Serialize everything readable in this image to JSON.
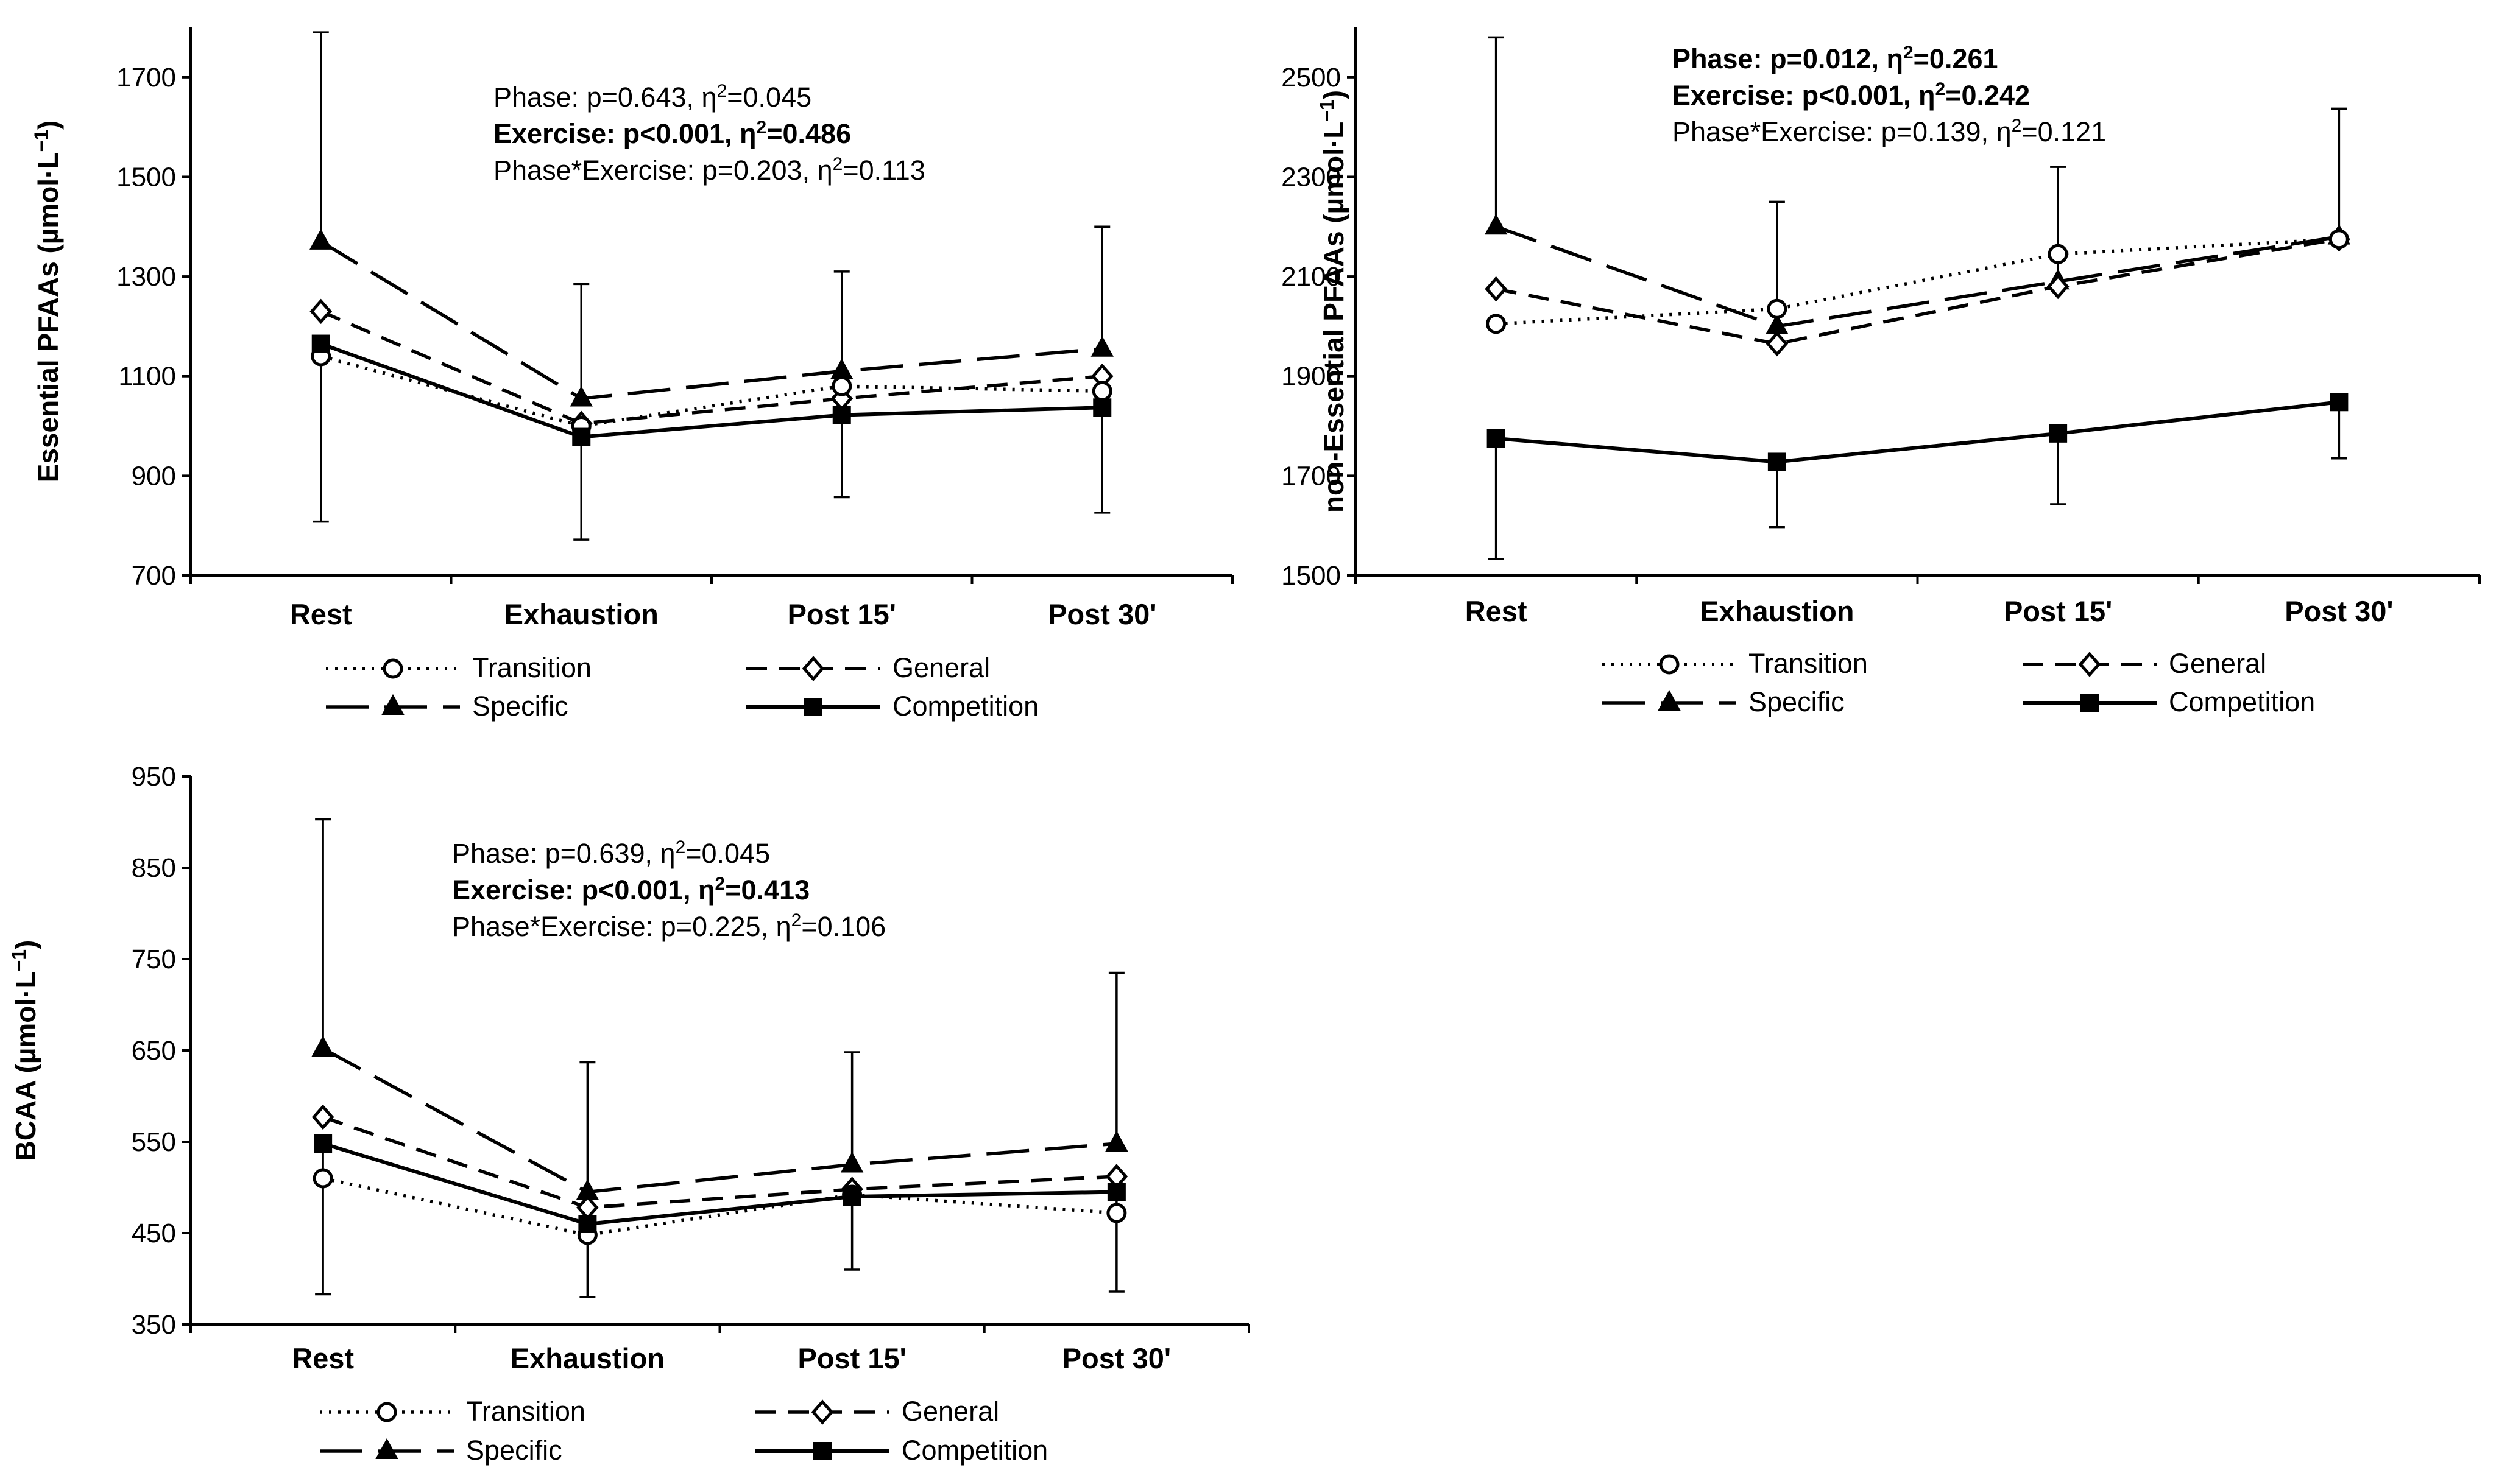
{
  "chart_data": [
    {
      "type": "line",
      "ylabel": "Essential PFAAs (µmol·L⁻¹)",
      "ylabel_main": "Essential PFAAs (µmol·L",
      "ylabel_sup": "−1",
      "ylabel_end": ")",
      "categories": [
        "Rest",
        "Exhaustion",
        "Post 15'",
        "Post 30'"
      ],
      "ylim": [
        700,
        1800
      ],
      "yticks": [
        700,
        900,
        1100,
        1300,
        1500,
        1700
      ],
      "series": [
        {
          "name": "Transition",
          "values": [
            1140,
            1000,
            1080,
            1070
          ]
        },
        {
          "name": "General",
          "values": [
            1230,
            1005,
            1055,
            1100
          ]
        },
        {
          "name": "Specific",
          "values": [
            1370,
            1055,
            1110,
            1155
          ]
        },
        {
          "name": "Competition",
          "values": [
            1165,
            978,
            1022,
            1037
          ]
        }
      ],
      "error_bars": [
        {
          "series": "Specific",
          "index": 0,
          "upper": 1790
        },
        {
          "series": "Competition",
          "index": 0,
          "lower": 808
        },
        {
          "series": "Specific",
          "index": 1,
          "upper": 1285
        },
        {
          "series": "Competition",
          "index": 1,
          "lower": 772
        },
        {
          "series": "Specific",
          "index": 2,
          "upper": 1310
        },
        {
          "series": "Competition",
          "index": 2,
          "lower": 857
        },
        {
          "series": "Specific",
          "index": 3,
          "upper": 1400
        },
        {
          "series": "Competition",
          "index": 3,
          "lower": 826
        }
      ],
      "annotations": [
        {
          "pre": "Phase: p=0.643, η",
          "sup": "2",
          "post": "=0.045",
          "bold": false
        },
        {
          "pre": "Exercise: p<0.001, η",
          "sup": "2",
          "post": "=0.486",
          "bold": true
        },
        {
          "pre": "Phase*Exercise: p=0.203, η",
          "sup": "2",
          "post": "=0.113",
          "bold": false
        }
      ]
    },
    {
      "type": "line",
      "ylabel": "non-Essential PFAAs (µmol·L⁻¹)",
      "ylabel_main": "non-Essential PFAAs (µmol·L",
      "ylabel_sup": "−1",
      "ylabel_end": ")",
      "categories": [
        "Rest",
        "Exhaustion",
        "Post 15'",
        "Post 30'"
      ],
      "ylim": [
        1500,
        2600
      ],
      "yticks": [
        1500,
        1700,
        1900,
        2100,
        2300,
        2500
      ],
      "series": [
        {
          "name": "Transition",
          "values": [
            2005,
            2035,
            2145,
            2175
          ]
        },
        {
          "name": "General",
          "values": [
            2075,
            1965,
            2080,
            2175
          ]
        },
        {
          "name": "Specific",
          "values": [
            2200,
            2000,
            2090,
            2180
          ]
        },
        {
          "name": "Competition",
          "values": [
            1775,
            1728,
            1785,
            1848
          ]
        }
      ],
      "error_bars": [
        {
          "series": "Specific",
          "index": 0,
          "upper": 2580
        },
        {
          "series": "Competition",
          "index": 0,
          "lower": 1533
        },
        {
          "series": "Specific",
          "index": 1,
          "upper": 2250
        },
        {
          "series": "Competition",
          "index": 1,
          "lower": 1597
        },
        {
          "series": "Specific",
          "index": 2,
          "upper": 2320
        },
        {
          "series": "Competition",
          "index": 2,
          "lower": 1643
        },
        {
          "series": "Specific",
          "index": 3,
          "upper": 2437
        },
        {
          "series": "Competition",
          "index": 3,
          "lower": 1735
        }
      ],
      "annotations": [
        {
          "pre": "Phase: p=0.012, η",
          "sup": "2",
          "post": "=0.261",
          "bold": true
        },
        {
          "pre": "Exercise: p<0.001, η",
          "sup": "2",
          "post": "=0.242",
          "bold": true
        },
        {
          "pre": "Phase*Exercise: p=0.139, η",
          "sup": "2",
          "post": "=0.121",
          "bold": false
        }
      ]
    },
    {
      "type": "line",
      "ylabel": "BCAA (µmol·L⁻¹)",
      "ylabel_main": "BCAA (µmol·L",
      "ylabel_sup": "−1",
      "ylabel_end": ")",
      "categories": [
        "Rest",
        "Exhaustion",
        "Post 15'",
        "Post 30'"
      ],
      "ylim": [
        350,
        950
      ],
      "yticks": [
        350,
        450,
        550,
        650,
        750,
        850,
        950
      ],
      "series": [
        {
          "name": "Transition",
          "values": [
            510,
            448,
            492,
            472
          ]
        },
        {
          "name": "General",
          "values": [
            577,
            478,
            498,
            512
          ]
        },
        {
          "name": "Specific",
          "values": [
            652,
            495,
            525,
            548
          ]
        },
        {
          "name": "Competition",
          "values": [
            548,
            460,
            490,
            495
          ]
        }
      ],
      "error_bars": [
        {
          "series": "Specific",
          "index": 0,
          "upper": 903
        },
        {
          "series": "Competition",
          "index": 0,
          "lower": 383
        },
        {
          "series": "Specific",
          "index": 1,
          "upper": 637
        },
        {
          "series": "Competition",
          "index": 1,
          "lower": 380
        },
        {
          "series": "Specific",
          "index": 2,
          "upper": 648
        },
        {
          "series": "Competition",
          "index": 2,
          "lower": 410
        },
        {
          "series": "Specific",
          "index": 3,
          "upper": 735
        },
        {
          "series": "Competition",
          "index": 3,
          "lower": 386
        }
      ],
      "annotations": [
        {
          "pre": "Phase: p=0.639, η",
          "sup": "2",
          "post": "=0.045",
          "bold": false
        },
        {
          "pre": "Exercise: p<0.001, η",
          "sup": "2",
          "post": "=0.413",
          "bold": true
        },
        {
          "pre": "Phase*Exercise: p=0.225, η",
          "sup": "2",
          "post": "=0.106",
          "bold": false
        }
      ]
    }
  ],
  "series_styles": {
    "Transition": {
      "marker": "circle",
      "line": "dotted"
    },
    "General": {
      "marker": "diamond",
      "line": "dashed"
    },
    "Specific": {
      "marker": "triangle",
      "line": "long-dash"
    },
    "Competition": {
      "marker": "square",
      "line": "solid"
    }
  },
  "colors": {
    "line": "#000000",
    "background": "#ffffff"
  }
}
